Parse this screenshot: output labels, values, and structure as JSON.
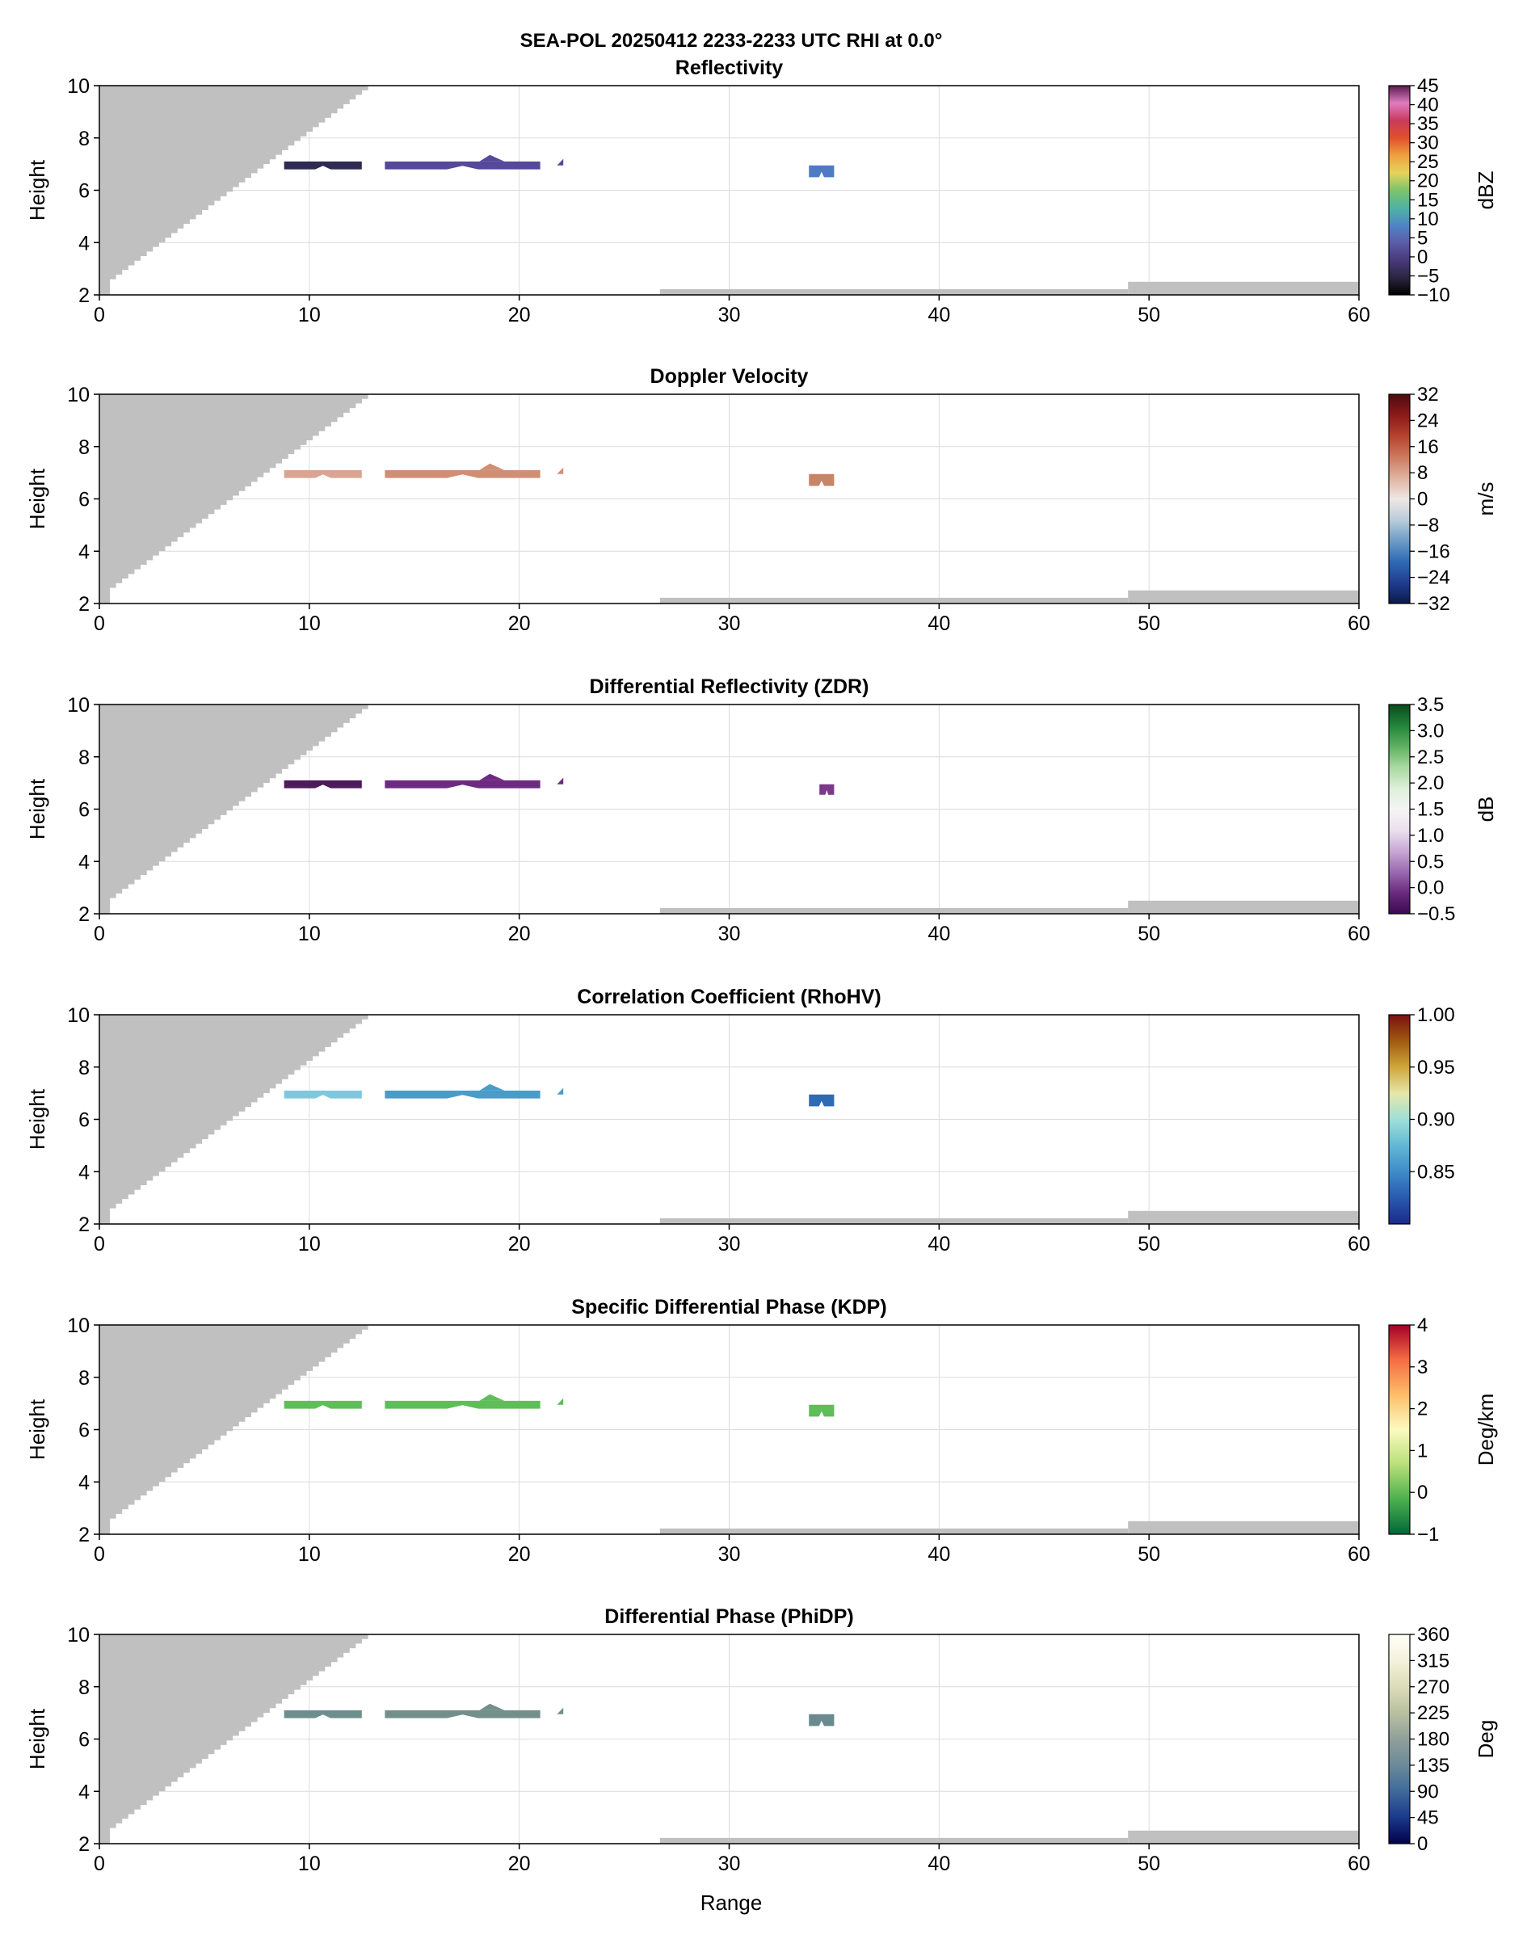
{
  "figure": {
    "suptitle": "SEA-POL 20250412 2233-2233 UTC RHI at 0.0°",
    "xlabel": "Range",
    "colors": {
      "blocked": "#c0c0c0",
      "grid": "#dcdcdc"
    }
  },
  "chart_data": [
    {
      "type": "heatmap",
      "title": "Reflectivity",
      "xlabel": "",
      "ylabel": "Height",
      "xlim": [
        0,
        60
      ],
      "ylim": [
        2,
        10
      ],
      "xticks": [
        0,
        10,
        20,
        30,
        40,
        50,
        60
      ],
      "yticks": [
        2,
        4,
        6,
        8,
        10
      ],
      "grid": true,
      "colorbar": {
        "label": "dBZ",
        "range": [
          -10,
          45
        ],
        "ticks": [
          -10,
          -5,
          0,
          5,
          10,
          15,
          20,
          25,
          30,
          35,
          40,
          45
        ],
        "colors": [
          "#000000",
          "#2b2540",
          "#4a3a7a",
          "#5b5ca8",
          "#4f86c6",
          "#4fb3a3",
          "#7cc36b",
          "#e5d45c",
          "#f0a040",
          "#e0502d",
          "#c83a5c",
          "#e07cc0",
          "#5a1a4e"
        ]
      },
      "features": [
        {
          "x0": 8.8,
          "x1": 12.5,
          "ylow": 6.8,
          "yhigh": 7.1,
          "color": "#2f2a52"
        },
        {
          "x0": 13.6,
          "x1": 21.0,
          "ylow": 6.8,
          "yhigh": 7.1,
          "color": "#56489a"
        },
        {
          "x0": 33.8,
          "x1": 35.0,
          "ylow": 6.5,
          "yhigh": 6.95,
          "color": "#4f7bc4"
        }
      ]
    },
    {
      "type": "heatmap",
      "title": "Doppler Velocity",
      "xlabel": "",
      "ylabel": "Height",
      "xlim": [
        0,
        60
      ],
      "ylim": [
        2,
        10
      ],
      "xticks": [
        0,
        10,
        20,
        30,
        40,
        50,
        60
      ],
      "yticks": [
        2,
        4,
        6,
        8,
        10
      ],
      "grid": true,
      "colorbar": {
        "label": "m/s",
        "range": [
          -32,
          32
        ],
        "ticks": [
          -32,
          -24,
          -16,
          -8,
          0,
          8,
          16,
          24,
          32
        ],
        "colors": [
          "#0c1a4a",
          "#1f3d8f",
          "#2f6ab3",
          "#6d9cc6",
          "#b9cddb",
          "#efe6e3",
          "#dfb3a0",
          "#cc7a5f",
          "#b5432d",
          "#8c1a1a",
          "#4e0a0f"
        ]
      },
      "features": [
        {
          "x0": 8.8,
          "x1": 12.5,
          "ylow": 6.8,
          "yhigh": 7.1,
          "color": "#d9a592"
        },
        {
          "x0": 13.6,
          "x1": 21.0,
          "ylow": 6.8,
          "yhigh": 7.1,
          "color": "#d08f75"
        },
        {
          "x0": 33.8,
          "x1": 35.0,
          "ylow": 6.5,
          "yhigh": 6.95,
          "color": "#c98366"
        }
      ]
    },
    {
      "type": "heatmap",
      "title": "Differential Reflectivity (ZDR)",
      "xlabel": "",
      "ylabel": "Height",
      "xlim": [
        0,
        60
      ],
      "ylim": [
        2,
        10
      ],
      "xticks": [
        0,
        10,
        20,
        30,
        40,
        50,
        60
      ],
      "yticks": [
        2,
        4,
        6,
        8,
        10
      ],
      "grid": true,
      "colorbar": {
        "label": "dB",
        "range": [
          -0.5,
          3.5
        ],
        "ticks": [
          -0.5,
          0.0,
          0.5,
          1.0,
          1.5,
          2.0,
          2.5,
          3.0,
          3.5
        ],
        "colors": [
          "#3a0a4e",
          "#6a2a7e",
          "#9a6ab0",
          "#c8a8d4",
          "#ece0ee",
          "#f5f5f5",
          "#dcefd8",
          "#a8d9a0",
          "#5fb060",
          "#21843a",
          "#0a4a1c"
        ]
      },
      "features": [
        {
          "x0": 8.8,
          "x1": 12.5,
          "ylow": 6.8,
          "yhigh": 7.1,
          "color": "#4d1a5c"
        },
        {
          "x0": 13.6,
          "x1": 21.0,
          "ylow": 6.8,
          "yhigh": 7.1,
          "color": "#6e2a80"
        },
        {
          "x0": 34.3,
          "x1": 35.0,
          "ylow": 6.55,
          "yhigh": 6.95,
          "color": "#7a3a8a"
        }
      ]
    },
    {
      "type": "heatmap",
      "title": "Correlation Coefficient (RhoHV)",
      "xlabel": "",
      "ylabel": "Height",
      "xlim": [
        0,
        60
      ],
      "ylim": [
        2,
        10
      ],
      "xticks": [
        0,
        10,
        20,
        30,
        40,
        50,
        60
      ],
      "yticks": [
        2,
        4,
        6,
        8,
        10
      ],
      "grid": true,
      "colorbar": {
        "label": "",
        "range": [
          0.8,
          1.0
        ],
        "ticks": [
          0.85,
          0.9,
          0.95,
          1.0
        ],
        "colors": [
          "#1a2a8a",
          "#2a5ab0",
          "#3f8cc8",
          "#62b8d4",
          "#9ee0d8",
          "#e7e6a8",
          "#cfa63a",
          "#a05a10",
          "#7a1010"
        ]
      },
      "features": [
        {
          "x0": 8.8,
          "x1": 12.5,
          "ylow": 6.8,
          "yhigh": 7.1,
          "color": "#7fc8dc"
        },
        {
          "x0": 13.6,
          "x1": 21.0,
          "ylow": 6.8,
          "yhigh": 7.1,
          "color": "#4a9cc8"
        },
        {
          "x0": 33.8,
          "x1": 35.0,
          "ylow": 6.5,
          "yhigh": 6.95,
          "color": "#2f6ab5"
        }
      ]
    },
    {
      "type": "heatmap",
      "title": "Specific Differential Phase (KDP)",
      "xlabel": "",
      "ylabel": "Height",
      "xlim": [
        0,
        60
      ],
      "ylim": [
        2,
        10
      ],
      "xticks": [
        0,
        10,
        20,
        30,
        40,
        50,
        60
      ],
      "yticks": [
        2,
        4,
        6,
        8,
        10
      ],
      "grid": true,
      "colorbar": {
        "label": "Deg/km",
        "range": [
          -1,
          4
        ],
        "ticks": [
          -1,
          0,
          1,
          2,
          3,
          4
        ],
        "colors": [
          "#006837",
          "#4cb050",
          "#b8df78",
          "#fbfbc0",
          "#fdbe6a",
          "#f46d43",
          "#a50026"
        ]
      },
      "features": [
        {
          "x0": 8.8,
          "x1": 12.5,
          "ylow": 6.8,
          "yhigh": 7.1,
          "color": "#5fbd5a"
        },
        {
          "x0": 13.6,
          "x1": 21.0,
          "ylow": 6.8,
          "yhigh": 7.1,
          "color": "#5fbd5a"
        },
        {
          "x0": 33.8,
          "x1": 35.0,
          "ylow": 6.5,
          "yhigh": 6.95,
          "color": "#5fbd5a"
        }
      ]
    },
    {
      "type": "heatmap",
      "title": "Differential Phase (PhiDP)",
      "xlabel": "Range",
      "ylabel": "Height",
      "xlim": [
        0,
        60
      ],
      "ylim": [
        2,
        10
      ],
      "xticks": [
        0,
        10,
        20,
        30,
        40,
        50,
        60
      ],
      "yticks": [
        2,
        4,
        6,
        8,
        10
      ],
      "grid": true,
      "colorbar": {
        "label": "Deg",
        "range": [
          0,
          360
        ],
        "ticks": [
          0,
          45,
          90,
          135,
          180,
          225,
          270,
          315,
          360
        ],
        "colors": [
          "#02004a",
          "#1a3a8a",
          "#3f6a9a",
          "#6a8a9a",
          "#90a09a",
          "#b8c0a0",
          "#dcdcb8",
          "#f4f2dc",
          "#fffff8"
        ]
      },
      "features": [
        {
          "x0": 8.8,
          "x1": 12.5,
          "ylow": 6.8,
          "yhigh": 7.1,
          "color": "#6e8e8e"
        },
        {
          "x0": 13.6,
          "x1": 21.0,
          "ylow": 6.8,
          "yhigh": 7.1,
          "color": "#738f8c"
        },
        {
          "x0": 33.8,
          "x1": 35.0,
          "ylow": 6.5,
          "yhigh": 6.95,
          "color": "#6a8a8e"
        }
      ]
    }
  ],
  "blockage": {
    "wedge": [
      [
        0.0,
        2.0
      ],
      [
        0.5,
        2.6
      ],
      [
        12.8,
        10.0
      ]
    ],
    "ground_segments": [
      {
        "x0": 26.7,
        "x1": 49.0,
        "ytop": 2.22
      },
      {
        "x0": 49.0,
        "x1": 60.0,
        "ytop": 2.5
      }
    ]
  }
}
